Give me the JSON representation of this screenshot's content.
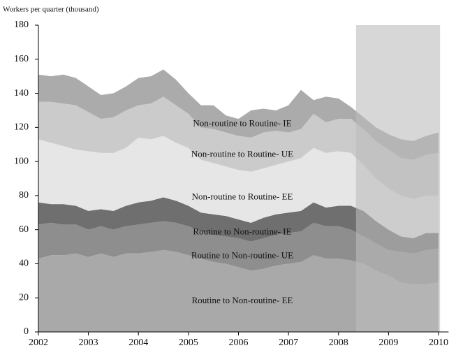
{
  "chart_data": {
    "type": "stacked_area",
    "y_label": "Workers per quarter (thousand)",
    "x": [
      2002,
      2002.25,
      2002.5,
      2002.75,
      2003,
      2003.25,
      2003.5,
      2003.75,
      2004,
      2004.25,
      2004.5,
      2004.75,
      2005,
      2005.25,
      2005.5,
      2005.75,
      2006,
      2006.25,
      2006.5,
      2006.75,
      2007,
      2007.25,
      2007.5,
      2007.75,
      2008,
      2008.25,
      2008.5,
      2008.75,
      2009,
      2009.25,
      2009.5,
      2009.75,
      2010
    ],
    "xlim": [
      2002,
      2010.2
    ],
    "xticks": [
      2002,
      2003,
      2004,
      2005,
      2006,
      2007,
      2008,
      2009,
      2010
    ],
    "ylim": [
      0,
      180
    ],
    "yticks": [
      0,
      20,
      40,
      60,
      80,
      100,
      120,
      140,
      160,
      180
    ],
    "shaded": [
      2008.35,
      2010.03
    ],
    "series": [
      {
        "name": "Routine to Non-routine- EE",
        "color": "#a9a9a9",
        "values": [
          43,
          45,
          45,
          46,
          44,
          46,
          44,
          46,
          46,
          47,
          48,
          47,
          45,
          43,
          41,
          40,
          38,
          36,
          37,
          39,
          40,
          41,
          45,
          43,
          43,
          42,
          40,
          36,
          33,
          29,
          28,
          28,
          29
        ]
      },
      {
        "name": "Routine to Non-routine- UE",
        "color": "#8e8e8e",
        "values": [
          20,
          19,
          18,
          17,
          16,
          16,
          16,
          16,
          17,
          17,
          17,
          17,
          17,
          16,
          16,
          16,
          17,
          17,
          18,
          18,
          18,
          18,
          19,
          19,
          19,
          18,
          16,
          16,
          15,
          18,
          18,
          20,
          20
        ]
      },
      {
        "name": "Routine to Non-routine- IE",
        "color": "#6f6f6f",
        "values": [
          13,
          11,
          12,
          11,
          11,
          10,
          11,
          12,
          13,
          13,
          14,
          13,
          12,
          11,
          12,
          12,
          11,
          11,
          12,
          12,
          12,
          12,
          12,
          11,
          12,
          14,
          15,
          13,
          12,
          9,
          9,
          10,
          9
        ]
      },
      {
        "name": "Non-routine to Routine- EE",
        "color": "#e6e6e6",
        "values": [
          37,
          36,
          34,
          33,
          35,
          33,
          34,
          34,
          38,
          36,
          36,
          34,
          34,
          31,
          30,
          29,
          29,
          30,
          29,
          29,
          30,
          31,
          32,
          32,
          32,
          31,
          27,
          25,
          24,
          24,
          23,
          22,
          22
        ]
      },
      {
        "name": "Non-routine to Routine- UE",
        "color": "#cbcbcb",
        "values": [
          22,
          24,
          25,
          26,
          23,
          20,
          21,
          22,
          19,
          21,
          23,
          22,
          20,
          19,
          20,
          20,
          20,
          20,
          21,
          20,
          17,
          17,
          20,
          18,
          19,
          20,
          21,
          22,
          23,
          22,
          23,
          24,
          25
        ]
      },
      {
        "name": "Non-routine to Routine- IE",
        "color": "#ababab",
        "values": [
          16,
          15,
          17,
          16,
          15,
          14,
          14,
          14,
          16,
          16,
          16,
          15,
          12,
          13,
          14,
          10,
          10,
          16,
          14,
          12,
          16,
          23,
          8,
          15,
          12,
          7,
          7,
          8,
          9,
          11,
          11,
          11,
          12
        ]
      }
    ]
  }
}
